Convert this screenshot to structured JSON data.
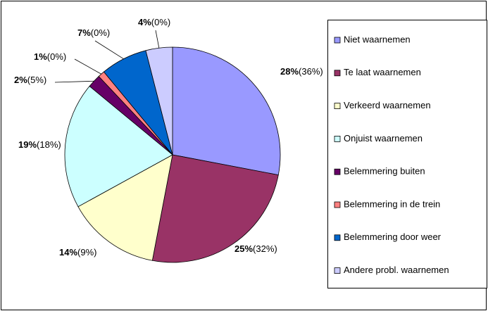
{
  "chart_data": {
    "type": "pie",
    "categories": [
      "Niet waarnemen",
      "Te laat waarnemen",
      "Verkeerd waarnemen",
      "Onjuist waarnemen",
      "Belemmering buiten",
      "Belemmering in de trein",
      "Belemmering door weer",
      "Andere probl. waarnemen"
    ],
    "values": [
      28,
      25,
      14,
      19,
      2,
      1,
      7,
      4
    ],
    "value_labels": [
      "28%",
      "25%",
      "14%",
      "19%",
      "2%",
      "1%",
      "7%",
      "4%"
    ],
    "secondary_values": [
      36,
      32,
      9,
      18,
      5,
      0,
      0,
      0
    ],
    "secondary_value_labels": [
      "(36%)",
      "(32%)",
      "(9%)",
      "(18%)",
      "(5%)",
      "(0%)",
      "(0%)",
      "(0%)"
    ],
    "colors": [
      "#9999ff",
      "#993366",
      "#ffffcc",
      "#ccffff",
      "#660066",
      "#ff8080",
      "#0066cc",
      "#ccccff"
    ],
    "legend": "right"
  }
}
